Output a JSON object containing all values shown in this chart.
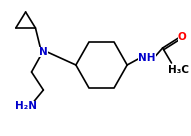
{
  "bg_color": "#ffffff",
  "bond_color": "#000000",
  "atom_color": "#0000cc",
  "oxygen_color": "#ff0000",
  "line_width": 1.2,
  "figsize": [
    1.91,
    1.36
  ],
  "dpi": 100,
  "N_label": "N",
  "NH_label": "NH",
  "NH2_label": "H₂N",
  "O_label": "O",
  "CH3_label": "H₃C",
  "font_size": 7.5
}
